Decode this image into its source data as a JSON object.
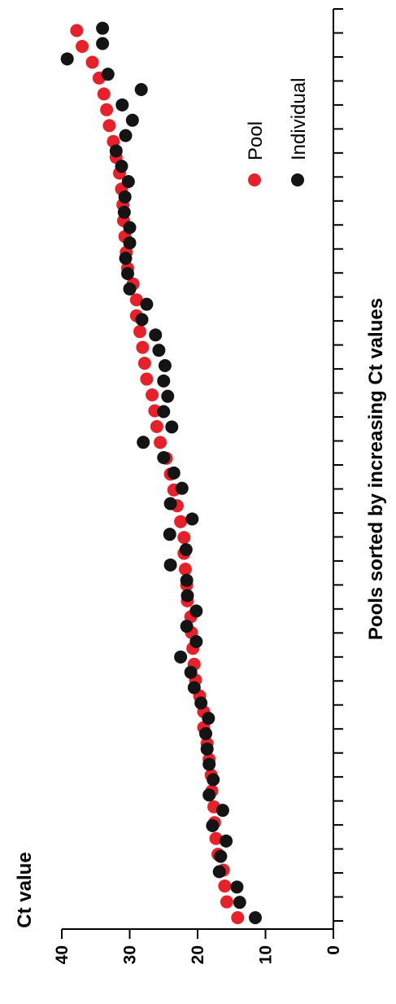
{
  "chart_data": {
    "type": "scatter",
    "xlabel": "Pools sorted by increasing Ct values",
    "ylabel": "Ct value",
    "ylim": [
      0,
      40
    ],
    "y_ticks": [
      "0",
      "10",
      "20",
      "30",
      "40"
    ],
    "x_ticks": [
      "",
      "",
      "",
      "",
      "",
      "",
      "",
      "",
      "",
      "",
      "",
      "",
      "",
      "",
      "",
      "",
      "",
      "",
      "",
      "",
      "",
      "",
      "",
      "",
      "",
      "",
      "",
      "",
      "",
      "",
      "",
      "",
      "",
      "",
      "",
      "",
      "",
      "",
      ""
    ],
    "legend_placement": "top-right",
    "series": [
      {
        "name": "Pool",
        "color": "#e8202a",
        "values": [
          14.1,
          15.7,
          16.0,
          16.2,
          17.0,
          17.3,
          17.5,
          17.6,
          17.9,
          18.0,
          18.3,
          18.6,
          19.1,
          19.1,
          19.7,
          20.3,
          20.5,
          20.7,
          20.9,
          21.0,
          21.5,
          21.6,
          21.8,
          22.0,
          22.0,
          22.5,
          23.0,
          23.5,
          24.0,
          24.6,
          25.5,
          26.0,
          26.3,
          26.7,
          27.5,
          27.8,
          28.1,
          28.5,
          29.0,
          29.0,
          29.5,
          30.3,
          30.5,
          30.7,
          30.9,
          31.0,
          31.2,
          31.5,
          32.0,
          32.4,
          33.0,
          33.4,
          33.8,
          34.5,
          35.5,
          37.0,
          37.8
        ]
      },
      {
        "name": "Individual",
        "color": "#141414",
        "values": [
          11.5,
          13.8,
          14.2,
          16.8,
          16.6,
          15.8,
          17.8,
          16.3,
          18.3,
          17.7,
          18.3,
          18.6,
          18.8,
          18.4,
          19.5,
          20.5,
          21.0,
          22.5,
          20.2,
          21.6,
          20.2,
          21.5,
          21.6,
          24.0,
          21.7,
          24.1,
          20.8,
          24.0,
          22.3,
          23.5,
          25.0,
          28.0,
          23.8,
          25.0,
          24.4,
          25.0,
          24.8,
          25.7,
          26.2,
          28.2,
          27.5,
          30.0,
          30.3,
          30.6,
          30.0,
          30.0,
          30.8,
          30.7,
          30.2,
          31.2,
          32.0,
          30.6,
          29.6,
          31.1,
          28.3,
          33.2,
          39.2,
          34.0,
          34.0
        ]
      }
    ]
  }
}
